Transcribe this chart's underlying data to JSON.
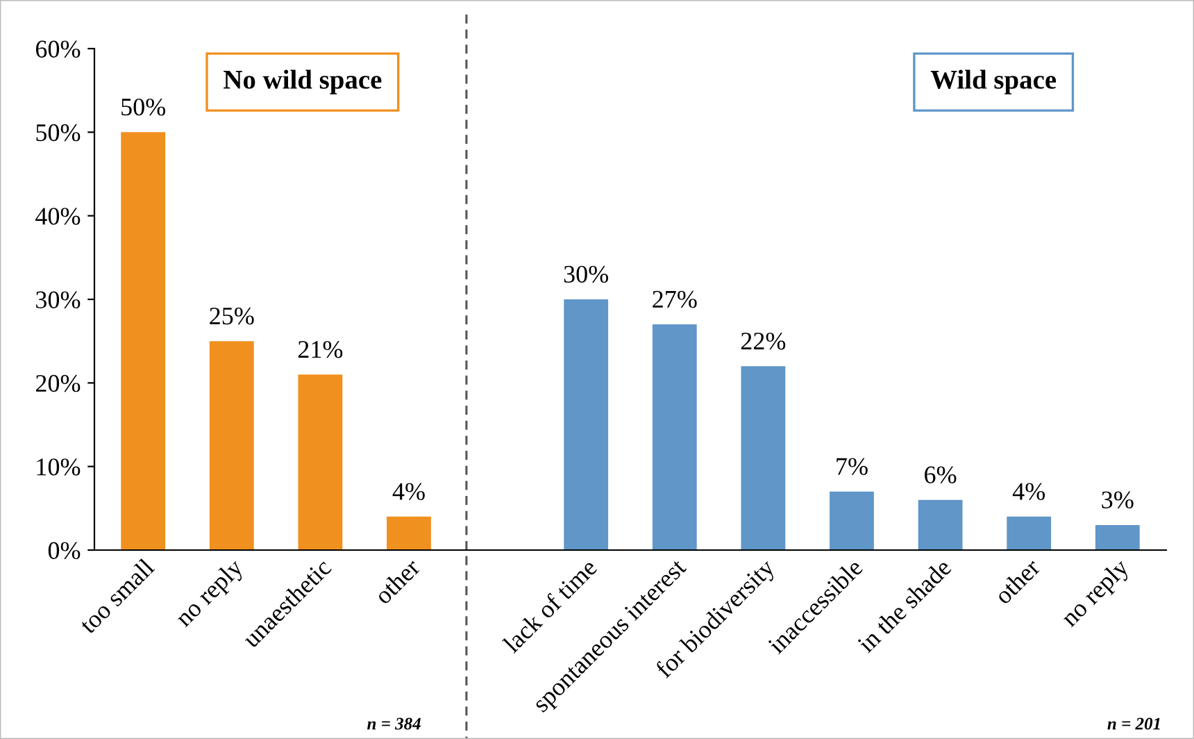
{
  "chart_data": {
    "type": "bar",
    "categories": [
      "too small",
      "no reply",
      "unaesthetic",
      "other",
      null,
      "lack of time",
      "spontaneous interest",
      "for biodiversity",
      "inaccessible",
      "in the shade",
      "other",
      "no reply"
    ],
    "series": [
      {
        "name": "No wild space",
        "color": "#f0901f",
        "values": [
          50,
          25,
          21,
          4,
          null,
          null,
          null,
          null,
          null,
          null,
          null,
          null
        ]
      },
      {
        "name": "Wild space",
        "color": "#6096c8",
        "values": [
          null,
          null,
          null,
          null,
          null,
          30,
          27,
          22,
          7,
          6,
          4,
          3
        ]
      }
    ],
    "ylim": [
      0,
      60
    ],
    "yticks": [
      {
        "value": 0,
        "label": "0%"
      },
      {
        "value": 10,
        "label": "10%"
      },
      {
        "value": 20,
        "label": "20%"
      },
      {
        "value": 30,
        "label": "30%"
      },
      {
        "value": 40,
        "label": "40%"
      },
      {
        "value": 50,
        "label": "50%"
      },
      {
        "value": 60,
        "label": "60%"
      }
    ],
    "value_labels": [
      [
        "50%",
        "25%",
        "21%",
        "4%",
        null,
        null,
        null,
        null,
        null,
        null,
        null,
        null
      ],
      [
        null,
        null,
        null,
        null,
        null,
        "30%",
        "27%",
        "22%",
        "7%",
        "6%",
        "4%",
        "3%"
      ]
    ],
    "annotations": [
      "n = 384",
      "n = 201"
    ],
    "grid": false,
    "legend": "top"
  }
}
